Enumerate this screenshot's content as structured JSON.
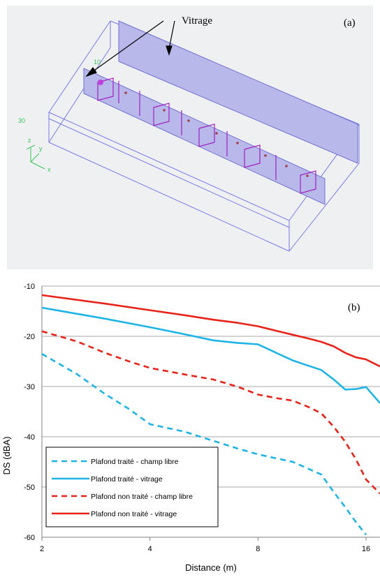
{
  "panel_a": {
    "label": "(a)",
    "annotation": "Vitrage",
    "axis_labels": [
      "x",
      "y",
      "z"
    ],
    "origin_labels": [
      "10",
      "30"
    ]
  },
  "panel_b": {
    "label": "(b)"
  },
  "chart_data": {
    "type": "line",
    "xlabel": "Distance (m)",
    "ylabel": "DS (dBA)",
    "x_scale": "log",
    "xlim": [
      2,
      17.5
    ],
    "ylim": [
      -60,
      -10
    ],
    "x_ticks": [
      2,
      4,
      8,
      16
    ],
    "y_ticks": [
      -10,
      -20,
      -30,
      -40,
      -50,
      -60
    ],
    "grid": "horizontal",
    "legend_position": "bottom-left",
    "series": [
      {
        "name": "Plafond traité - champ libre",
        "color": "#1fb4e6",
        "dash": "dashed",
        "x": [
          2,
          2.5,
          3,
          3.5,
          4,
          5,
          6,
          7,
          8,
          9,
          10,
          11,
          12,
          13,
          14,
          15,
          16
        ],
        "y": [
          -23.5,
          -27.5,
          -31.5,
          -34.5,
          -37.5,
          -39,
          -40.8,
          -42.3,
          -43.5,
          -44.3,
          -45,
          -46.3,
          -47.5,
          -51,
          -54,
          -57,
          -59.5
        ]
      },
      {
        "name": "Plafond traité - vitrage",
        "color": "#1fb4e6",
        "dash": "solid",
        "x": [
          2,
          3,
          4,
          5,
          6,
          7,
          8,
          9,
          10,
          11,
          12,
          13,
          14,
          15,
          16,
          17.5
        ],
        "y": [
          -14.3,
          -16.5,
          -18.2,
          -19.6,
          -20.8,
          -21.3,
          -21.6,
          -23.3,
          -24.8,
          -25.8,
          -26.7,
          -28.6,
          -30.6,
          -30.5,
          -30.1,
          -33.3
        ]
      },
      {
        "name": "Plafond non traité - champ libre",
        "color": "#e8231a",
        "dash": "dashed",
        "x": [
          2,
          2.5,
          3,
          3.5,
          4,
          5,
          6,
          7,
          8,
          9,
          10,
          11,
          12,
          13,
          14,
          15,
          16,
          17.5
        ],
        "y": [
          -19,
          -21,
          -23.3,
          -25,
          -26.3,
          -27.6,
          -28.6,
          -30,
          -31.6,
          -32.3,
          -32.8,
          -34,
          -35.3,
          -38,
          -41,
          -44.5,
          -48.5,
          -51.3
        ]
      },
      {
        "name": "Plafond non traité - vitrage",
        "color": "#e8231a",
        "dash": "solid",
        "x": [
          2,
          3,
          4,
          5,
          6,
          7,
          8,
          9,
          10,
          11,
          12,
          13,
          14,
          15,
          16,
          17.5
        ],
        "y": [
          -11.8,
          -13.5,
          -14.8,
          -15.8,
          -16.7,
          -17.3,
          -18,
          -18.9,
          -19.7,
          -20.4,
          -21.1,
          -22,
          -23.3,
          -24.2,
          -24.6,
          -26
        ]
      }
    ]
  }
}
